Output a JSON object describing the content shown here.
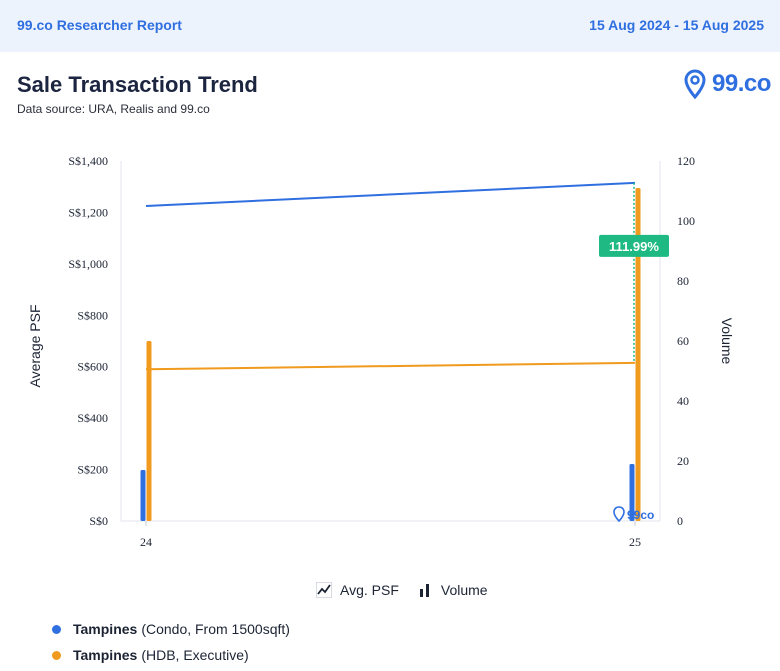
{
  "header": {
    "brand": "99.co Researcher Report",
    "date_range": "15 Aug 2024 - 15 Aug 2025"
  },
  "title": "Sale Transaction Trend",
  "subtitle": "Data source: URA, Realis and 99.co",
  "logo_text": "99.co",
  "watermark_text": "99co",
  "colors": {
    "condo": "#2f6fe0",
    "hdb": "#f09a1e",
    "badge": "#1fba84"
  },
  "legend": {
    "psf_label": "Avg. PSF",
    "volume_label": "Volume"
  },
  "series_legend": [
    {
      "name": "Tampines",
      "detail": "(Condo, From 1500sqft)",
      "color": "#2f6fe0"
    },
    {
      "name": "Tampines",
      "detail": "(HDB, Executive)",
      "color": "#f09a1e"
    }
  ],
  "chart_data": {
    "type": "line+bar",
    "categories": [
      "24",
      "25"
    ],
    "ylabel_left": "Average PSF",
    "ylabel_right": "Volume",
    "y_left": {
      "min": 0,
      "max": 1400,
      "ticks": [
        "S$0",
        "S$200",
        "S$400",
        "S$600",
        "S$800",
        "S$1,000",
        "S$1,200",
        "S$1,400"
      ]
    },
    "y_right": {
      "min": 0,
      "max": 120,
      "ticks": [
        "0",
        "20",
        "40",
        "60",
        "80",
        "100",
        "120"
      ]
    },
    "psf_series": [
      {
        "name": "Tampines (Condo, From 1500sqft)",
        "values": [
          1225,
          1315
        ]
      },
      {
        "name": "Tampines (HDB, Executive)",
        "values": [
          590,
          615
        ]
      }
    ],
    "volume_series": [
      {
        "name": "Tampines (Condo, From 1500sqft)",
        "values": [
          17,
          19
        ]
      },
      {
        "name": "Tampines (HDB, Executive)",
        "values": [
          60,
          111
        ]
      }
    ],
    "annotation": {
      "text": "111.99%",
      "category": "25"
    }
  }
}
